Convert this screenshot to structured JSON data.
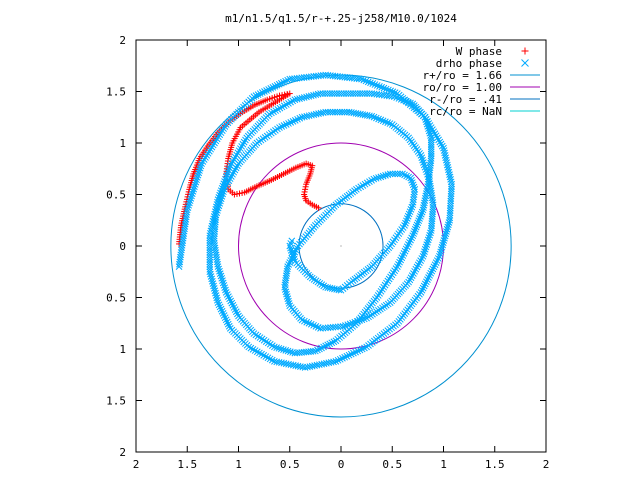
{
  "chart_data": {
    "type": "scatter",
    "title": "m1/n1.5/q1.5/r-+.25-j258/M10.0/1024",
    "xlabel": "",
    "ylabel": "",
    "xlim": [
      -2,
      2
    ],
    "ylim": [
      -2,
      2
    ],
    "grid": false,
    "legend_position": "top-right",
    "x_ticks": [
      -2,
      -1.5,
      -1,
      -0.5,
      0,
      0.5,
      1,
      1.5,
      2
    ],
    "x_tick_labels": [
      "2",
      "1.5",
      "1",
      "0.5",
      "0",
      "0.5",
      "1",
      "1.5",
      "2"
    ],
    "y_ticks": [
      2,
      1.5,
      1,
      0.5,
      0,
      -0.5,
      -1,
      -1.5,
      -2
    ],
    "y_tick_labels": [
      "2",
      "1.5",
      "1",
      "0.5",
      "0",
      "0.5",
      "1",
      "1.5",
      "2"
    ],
    "series": [
      {
        "name": "W phase",
        "marker": "+",
        "color": "#ff0000",
        "x": [
          -1.58,
          -1.56,
          -1.52,
          -1.48,
          -1.44,
          -1.38,
          -1.3,
          -1.2,
          -1.08,
          -0.96,
          -0.84,
          -0.72,
          -0.6,
          -0.5,
          -0.8,
          -0.98,
          -1.06,
          -1.1,
          -1.12,
          -1.1,
          -1.04,
          -0.94,
          -0.82,
          -0.68,
          -0.56,
          -0.44,
          -0.34,
          -0.28,
          -0.3,
          -0.34,
          -0.36,
          -0.34,
          -0.28,
          -0.22
        ],
        "y": [
          0.02,
          0.2,
          0.38,
          0.55,
          0.7,
          0.85,
          0.97,
          1.1,
          1.22,
          1.3,
          1.37,
          1.42,
          1.46,
          1.48,
          1.3,
          1.15,
          1.0,
          0.85,
          0.7,
          0.55,
          0.5,
          0.52,
          0.58,
          0.64,
          0.7,
          0.76,
          0.8,
          0.78,
          0.7,
          0.6,
          0.5,
          0.44,
          0.4,
          0.37
        ]
      },
      {
        "name": "drho phase",
        "marker": "x",
        "color": "#00aaff",
        "x": [
          -1.58,
          -1.5,
          -1.36,
          -1.12,
          -0.85,
          -0.5,
          -0.15,
          0.2,
          0.55,
          0.82,
          1.0,
          1.08,
          1.06,
          0.96,
          0.78,
          0.55,
          0.25,
          -0.05,
          -0.35,
          -0.65,
          -0.9,
          -1.08,
          -1.2,
          -1.28,
          -1.28,
          -1.2,
          -1.08,
          -0.92,
          -0.7,
          -0.45,
          -0.2,
          0.05,
          0.3,
          0.52,
          0.7,
          0.82,
          0.88,
          0.88,
          0.85,
          0.8,
          0.7,
          0.55,
          0.35,
          0.15,
          -0.05,
          -0.25,
          -0.45,
          -0.65,
          -0.85,
          -1.0,
          -1.12,
          -1.2,
          -1.24,
          -1.22,
          -1.14,
          -1.0,
          -0.82,
          -0.6,
          -0.38,
          -0.15,
          0.08,
          0.3,
          0.5,
          0.66,
          0.78,
          0.86,
          0.9,
          0.88,
          0.8,
          0.66,
          0.48,
          0.25,
          0.02,
          -0.2,
          -0.38,
          -0.5,
          -0.55,
          -0.52,
          -0.42,
          -0.25,
          -0.05,
          0.15,
          0.32,
          0.48,
          0.6,
          0.68,
          0.72,
          0.7,
          0.62,
          0.48,
          0.3,
          0.1,
          0.0,
          -0.15,
          -0.3,
          -0.45,
          -0.5,
          -0.48
        ],
        "y": [
          -0.2,
          0.35,
          0.8,
          1.18,
          1.45,
          1.62,
          1.66,
          1.62,
          1.48,
          1.25,
          0.95,
          0.6,
          0.25,
          -0.1,
          -0.45,
          -0.75,
          -0.98,
          -1.12,
          -1.18,
          -1.12,
          -0.98,
          -0.8,
          -0.55,
          -0.25,
          0.1,
          0.45,
          0.78,
          1.05,
          1.28,
          1.42,
          1.48,
          1.48,
          1.48,
          1.45,
          1.38,
          1.25,
          1.05,
          0.85,
          0.6,
          0.35,
          0.1,
          -0.2,
          -0.5,
          -0.75,
          -0.92,
          -1.02,
          -1.04,
          -0.98,
          -0.85,
          -0.68,
          -0.45,
          -0.2,
          0.05,
          0.3,
          0.55,
          0.8,
          1.0,
          1.15,
          1.25,
          1.3,
          1.3,
          1.26,
          1.18,
          1.05,
          0.88,
          0.65,
          0.4,
          0.15,
          -0.1,
          -0.35,
          -0.55,
          -0.7,
          -0.78,
          -0.8,
          -0.72,
          -0.58,
          -0.4,
          -0.2,
          0.0,
          0.2,
          0.4,
          0.55,
          0.65,
          0.7,
          0.7,
          0.66,
          0.55,
          0.4,
          0.2,
          0.0,
          -0.2,
          -0.35,
          -0.43,
          -0.4,
          -0.3,
          -0.15,
          0.0,
          0.05
        ]
      },
      {
        "name": "r+/ro = 1.66",
        "style": "circle",
        "color": "#0090d0",
        "radius": 1.66
      },
      {
        "name": "ro/ro = 1.00",
        "style": "circle",
        "color": "#a000b0",
        "radius": 1.0
      },
      {
        "name": "r-/ro = .41",
        "style": "circle",
        "color": "#0070c0",
        "radius": 0.41
      },
      {
        "name": "rc/ro = NaN",
        "style": "circle",
        "color": "#00d0d0",
        "radius": null
      }
    ]
  }
}
